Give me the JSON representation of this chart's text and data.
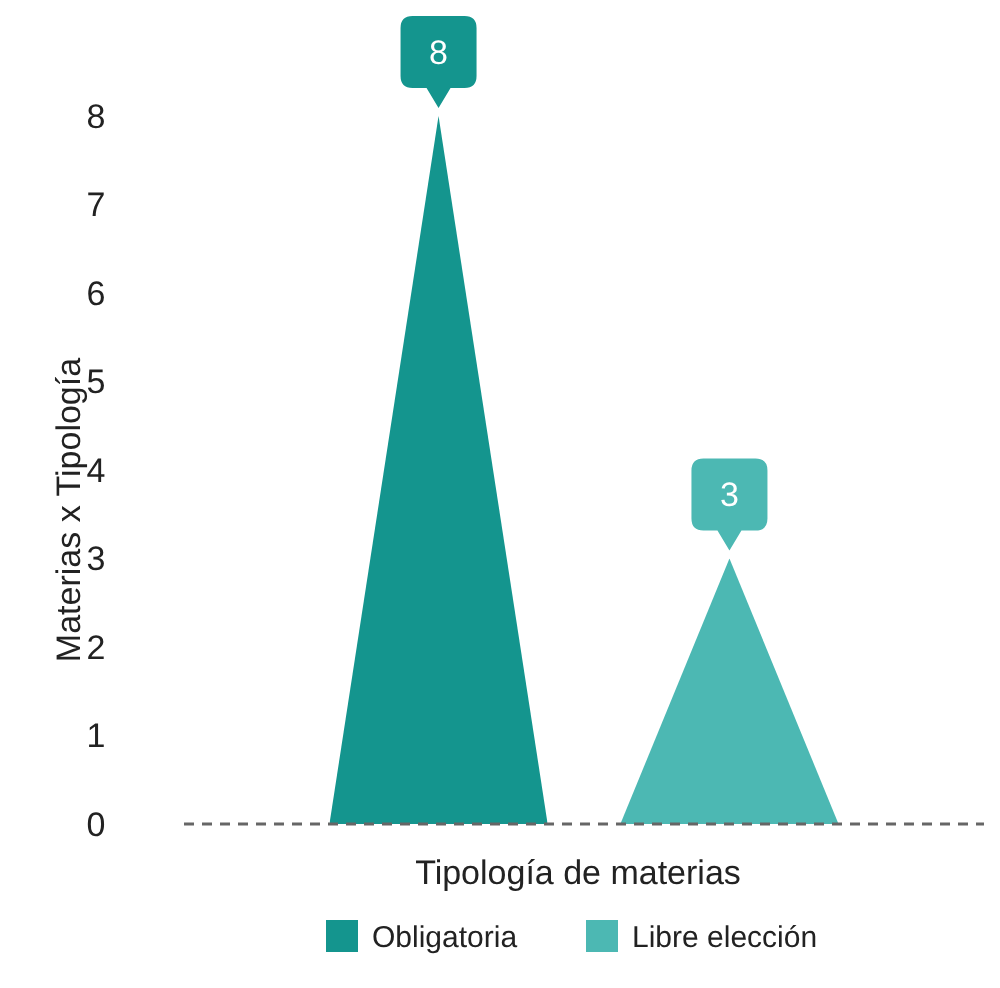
{
  "chart_data": {
    "type": "bar",
    "xlabel": "Tipología de materias",
    "ylabel": "Materias x Tipología",
    "categories": [
      null
    ],
    "series": [
      {
        "name": "Obligatoria",
        "color": "#14958e",
        "values": [
          8
        ]
      },
      {
        "name": "Libre elección",
        "color": "#4cb8b3",
        "values": [
          3
        ]
      }
    ],
    "ylim": [
      0,
      8
    ],
    "yticks": [
      0,
      1,
      2,
      3,
      4,
      5,
      6,
      7,
      8
    ],
    "data_labels": true,
    "legend": "bottom",
    "grid": false
  }
}
